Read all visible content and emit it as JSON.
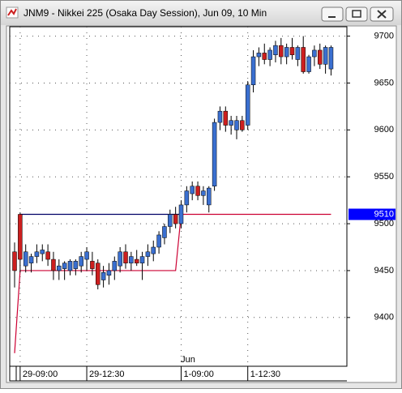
{
  "chart_data": {
    "type": "candlestick",
    "title": "JNM9 - Nikkei 225 (Osaka Day Session), Jun 09, 10 Min",
    "month_label": "Jun",
    "categories": [
      null,
      "29-09:00",
      null,
      null,
      null,
      null,
      null,
      null,
      null,
      null,
      null,
      null,
      null,
      "29-12:30",
      null,
      null,
      null,
      null,
      null,
      null,
      null,
      null,
      null,
      null,
      null,
      null,
      null,
      null,
      null,
      null,
      "1-09:00",
      null,
      null,
      null,
      null,
      null,
      null,
      null,
      null,
      null,
      null,
      null,
      "1-12:30",
      null,
      null,
      null,
      null,
      null,
      null,
      null,
      null,
      null,
      null,
      null,
      null,
      null,
      null,
      null
    ],
    "open": [
      9470,
      9510,
      9455,
      9458,
      9465,
      9468,
      9470,
      9462,
      9450,
      9452,
      9450,
      9452,
      9455,
      9462,
      9460,
      9458,
      9440,
      9445,
      9450,
      9455,
      9470,
      9458,
      9462,
      9458,
      9465,
      9468,
      9475,
      9485,
      9497,
      9510,
      9500,
      9520,
      9532,
      9540,
      9530,
      9520,
      9540,
      9608,
      9620,
      9605,
      9600,
      9610,
      9605,
      9648,
      9678,
      9682,
      9675,
      9680,
      9690,
      9678,
      9688,
      9675,
      9688,
      9662,
      9678,
      9685,
      9670,
      9665
    ],
    "high": [
      9480,
      9512,
      9478,
      9468,
      9478,
      9478,
      9478,
      9470,
      9462,
      9460,
      9462,
      9462,
      9470,
      9475,
      9470,
      9462,
      9455,
      9458,
      9465,
      9475,
      9478,
      9470,
      9472,
      9470,
      9478,
      9482,
      9492,
      9500,
      9515,
      9518,
      9525,
      9540,
      9545,
      9545,
      9540,
      9540,
      9612,
      9625,
      9625,
      9615,
      9615,
      9615,
      9652,
      9685,
      9688,
      9692,
      9688,
      9695,
      9698,
      9692,
      9698,
      9690,
      9700,
      9680,
      9690,
      9692,
      9690,
      9690
    ],
    "low": [
      9432,
      9448,
      9448,
      9448,
      9458,
      9460,
      9455,
      9440,
      9440,
      9440,
      9445,
      9445,
      9448,
      9450,
      9445,
      9430,
      9432,
      9435,
      9440,
      9448,
      9452,
      9450,
      9455,
      9440,
      9455,
      9460,
      9468,
      9478,
      9490,
      9495,
      9495,
      9512,
      9525,
      9525,
      9520,
      9512,
      9535,
      9600,
      9598,
      9595,
      9590,
      9598,
      9600,
      9640,
      9668,
      9670,
      9668,
      9672,
      9670,
      9670,
      9675,
      9668,
      9660,
      9660,
      9668,
      9665,
      9660,
      9658
    ],
    "close": [
      9450,
      9462,
      9470,
      9465,
      9470,
      9472,
      9462,
      9450,
      9455,
      9458,
      9460,
      9460,
      9465,
      9470,
      9452,
      9435,
      9448,
      9450,
      9460,
      9470,
      9458,
      9465,
      9458,
      9465,
      9470,
      9475,
      9488,
      9497,
      9510,
      9500,
      9520,
      9535,
      9540,
      9530,
      9535,
      9538,
      9608,
      9620,
      9605,
      9610,
      9610,
      9600,
      9648,
      9678,
      9682,
      9675,
      9685,
      9690,
      9678,
      9688,
      9680,
      9688,
      9662,
      9678,
      9685,
      9670,
      9688,
      9688
    ],
    "up_color": "#3a6fd0",
    "down_color": "#cc1f1f",
    "upper_line": {
      "x": [
        1,
        30
      ],
      "values": [
        9510,
        9510
      ],
      "color": "#000066"
    },
    "lower_line": {
      "x": [
        0,
        1,
        29,
        30,
        57
      ],
      "values": [
        9362,
        9450,
        9450,
        9510,
        9510
      ],
      "color": "#cc0033"
    },
    "last_price": 9510,
    "ylim": [
      9348,
      9710
    ],
    "yticks": [
      9400,
      9450,
      9500,
      9550,
      9600,
      9650,
      9700
    ],
    "grid": true
  }
}
